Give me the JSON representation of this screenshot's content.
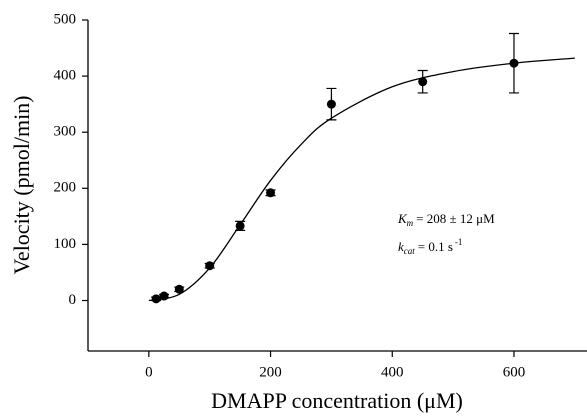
{
  "chart_data": {
    "type": "scatter",
    "x_label": "DMAPP concentration (μM)",
    "y_label": "Velocity (pmol/min)",
    "xlim": [
      -100,
      720
    ],
    "xticks": [
      0,
      200,
      400,
      600
    ],
    "ylim": [
      -90,
      500
    ],
    "yticks": [
      0,
      100,
      200,
      300,
      400,
      500
    ],
    "series": [
      {
        "type": "scatter",
        "color": "#000000",
        "x": [
          12,
          25,
          50,
          100,
          150,
          200,
          300,
          450,
          600
        ],
        "values": [
          3,
          8,
          20,
          62,
          133,
          192,
          350,
          390,
          423
        ],
        "errors": [
          3,
          3,
          4,
          4,
          8,
          5,
          28,
          20,
          53
        ]
      },
      {
        "type": "line",
        "color": "#000000",
        "x": [
          0,
          50,
          100,
          150,
          200,
          250,
          300,
          400,
          500,
          600,
          700
        ],
        "values": [
          0,
          11,
          58,
          135,
          214,
          278,
          325,
          381,
          408,
          423,
          432
        ]
      }
    ],
    "annotations": [
      {
        "symbol": "K",
        "subscript": "m",
        "text": "= 208 ± 12 μM"
      },
      {
        "symbol": "k",
        "subscript": "cat",
        "text": "= 0.1 s",
        "superscript": "-1"
      }
    ]
  }
}
